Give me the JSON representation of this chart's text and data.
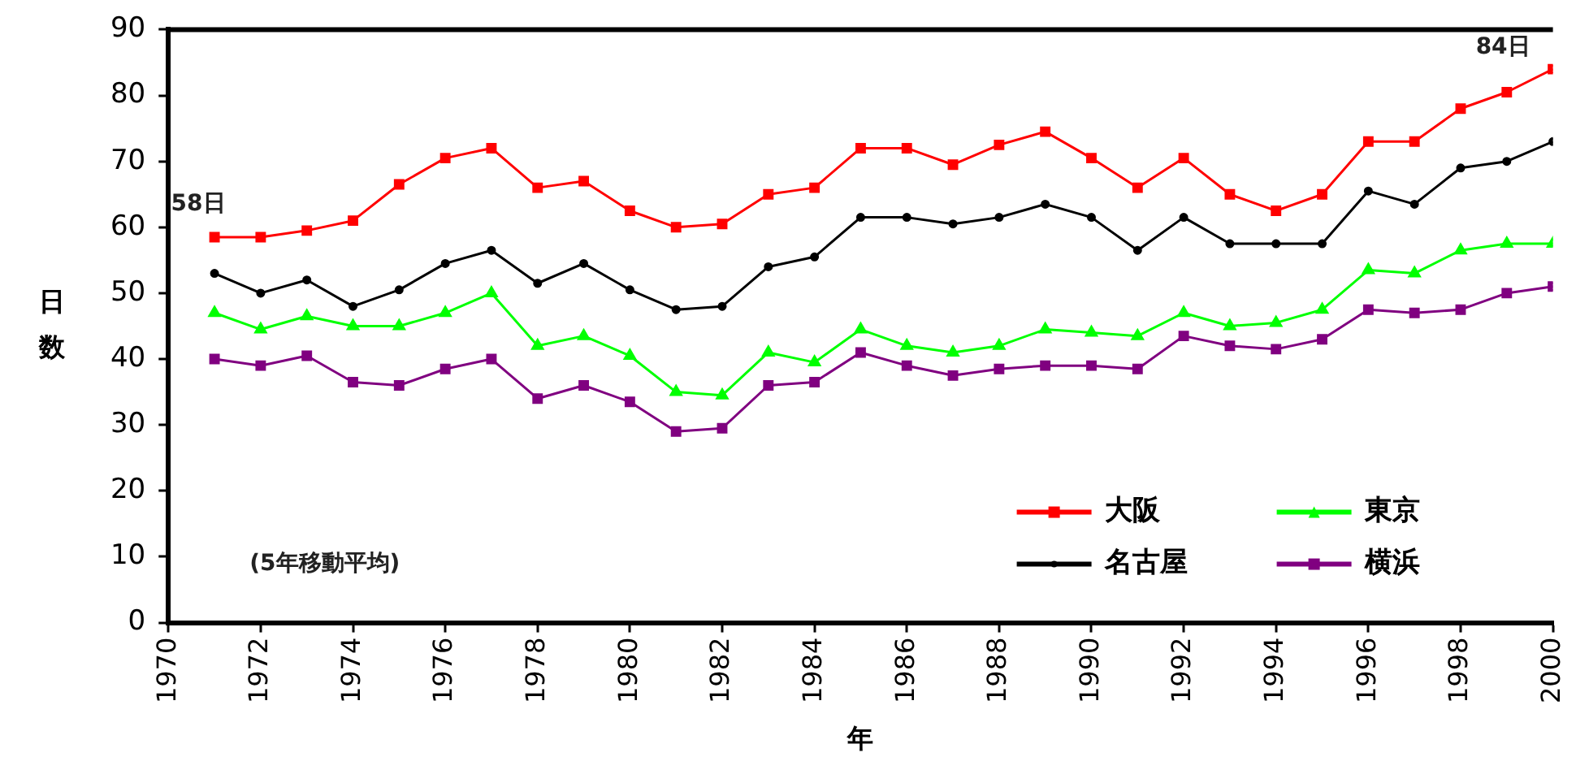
{
  "chart_data": {
    "type": "line",
    "xlabel": "年",
    "ylabel": "日数",
    "x": [
      1971,
      1972,
      1973,
      1974,
      1975,
      1976,
      1977,
      1978,
      1979,
      1980,
      1981,
      1982,
      1983,
      1984,
      1985,
      1986,
      1987,
      1988,
      1989,
      1990,
      1991,
      1992,
      1993,
      1994,
      1995,
      1996,
      1997,
      1998,
      1999,
      2000
    ],
    "series": [
      {
        "name": "大阪",
        "color": "#ff0000",
        "marker": "square",
        "values": [
          58.5,
          58.5,
          59.5,
          61,
          66.5,
          70.5,
          72,
          66,
          67,
          62.5,
          60,
          60.5,
          65,
          66,
          72,
          72,
          69.5,
          72.5,
          74.5,
          70.5,
          66,
          70.5,
          65,
          62.5,
          65,
          73,
          73,
          78,
          80.5,
          84
        ]
      },
      {
        "name": "名古屋",
        "color": "#000000",
        "marker": "circle",
        "values": [
          53,
          50,
          52,
          48,
          50.5,
          54.5,
          56.5,
          51.5,
          54.5,
          50.5,
          47.5,
          48,
          54,
          55.5,
          61.5,
          61.5,
          60.5,
          61.5,
          63.5,
          61.5,
          56.5,
          61.5,
          57.5,
          57.5,
          57.5,
          65.5,
          63.5,
          69,
          70,
          73
        ]
      },
      {
        "name": "東京",
        "color": "#00ff00",
        "marker": "triangle",
        "values": [
          47,
          44.5,
          46.5,
          45,
          45,
          47,
          50,
          42,
          43.5,
          40.5,
          35,
          34.5,
          41,
          39.5,
          44.5,
          42,
          41,
          42,
          44.5,
          44,
          43.5,
          47,
          45,
          45.5,
          47.5,
          53.5,
          53,
          56.5,
          57.5,
          57.5
        ]
      },
      {
        "name": "横浜",
        "color": "#800080",
        "marker": "square",
        "values": [
          40,
          39,
          40.5,
          36.5,
          36,
          38.5,
          40,
          34,
          36,
          33.5,
          29,
          29.5,
          36,
          36.5,
          41,
          39,
          37.5,
          38.5,
          39,
          39,
          38.5,
          43.5,
          42,
          41.5,
          43,
          47.5,
          47,
          47.5,
          50,
          51
        ]
      }
    ],
    "xlim": [
      1970,
      2000
    ],
    "xticks": [
      1970,
      1972,
      1974,
      1976,
      1978,
      1980,
      1982,
      1984,
      1986,
      1988,
      1990,
      1992,
      1994,
      1996,
      1998,
      2000
    ],
    "ylim": [
      0,
      90
    ],
    "yticks": [
      0,
      10,
      20,
      30,
      40,
      50,
      60,
      70,
      80,
      90
    ],
    "grid": false,
    "legend": "bottom right",
    "line_style": "solid",
    "annotations": [
      {
        "text": "58日",
        "x": 1971,
        "y": 58.5
      },
      {
        "text": "84日",
        "x": 2000,
        "y": 84
      },
      "(5年移動平均)"
    ]
  }
}
